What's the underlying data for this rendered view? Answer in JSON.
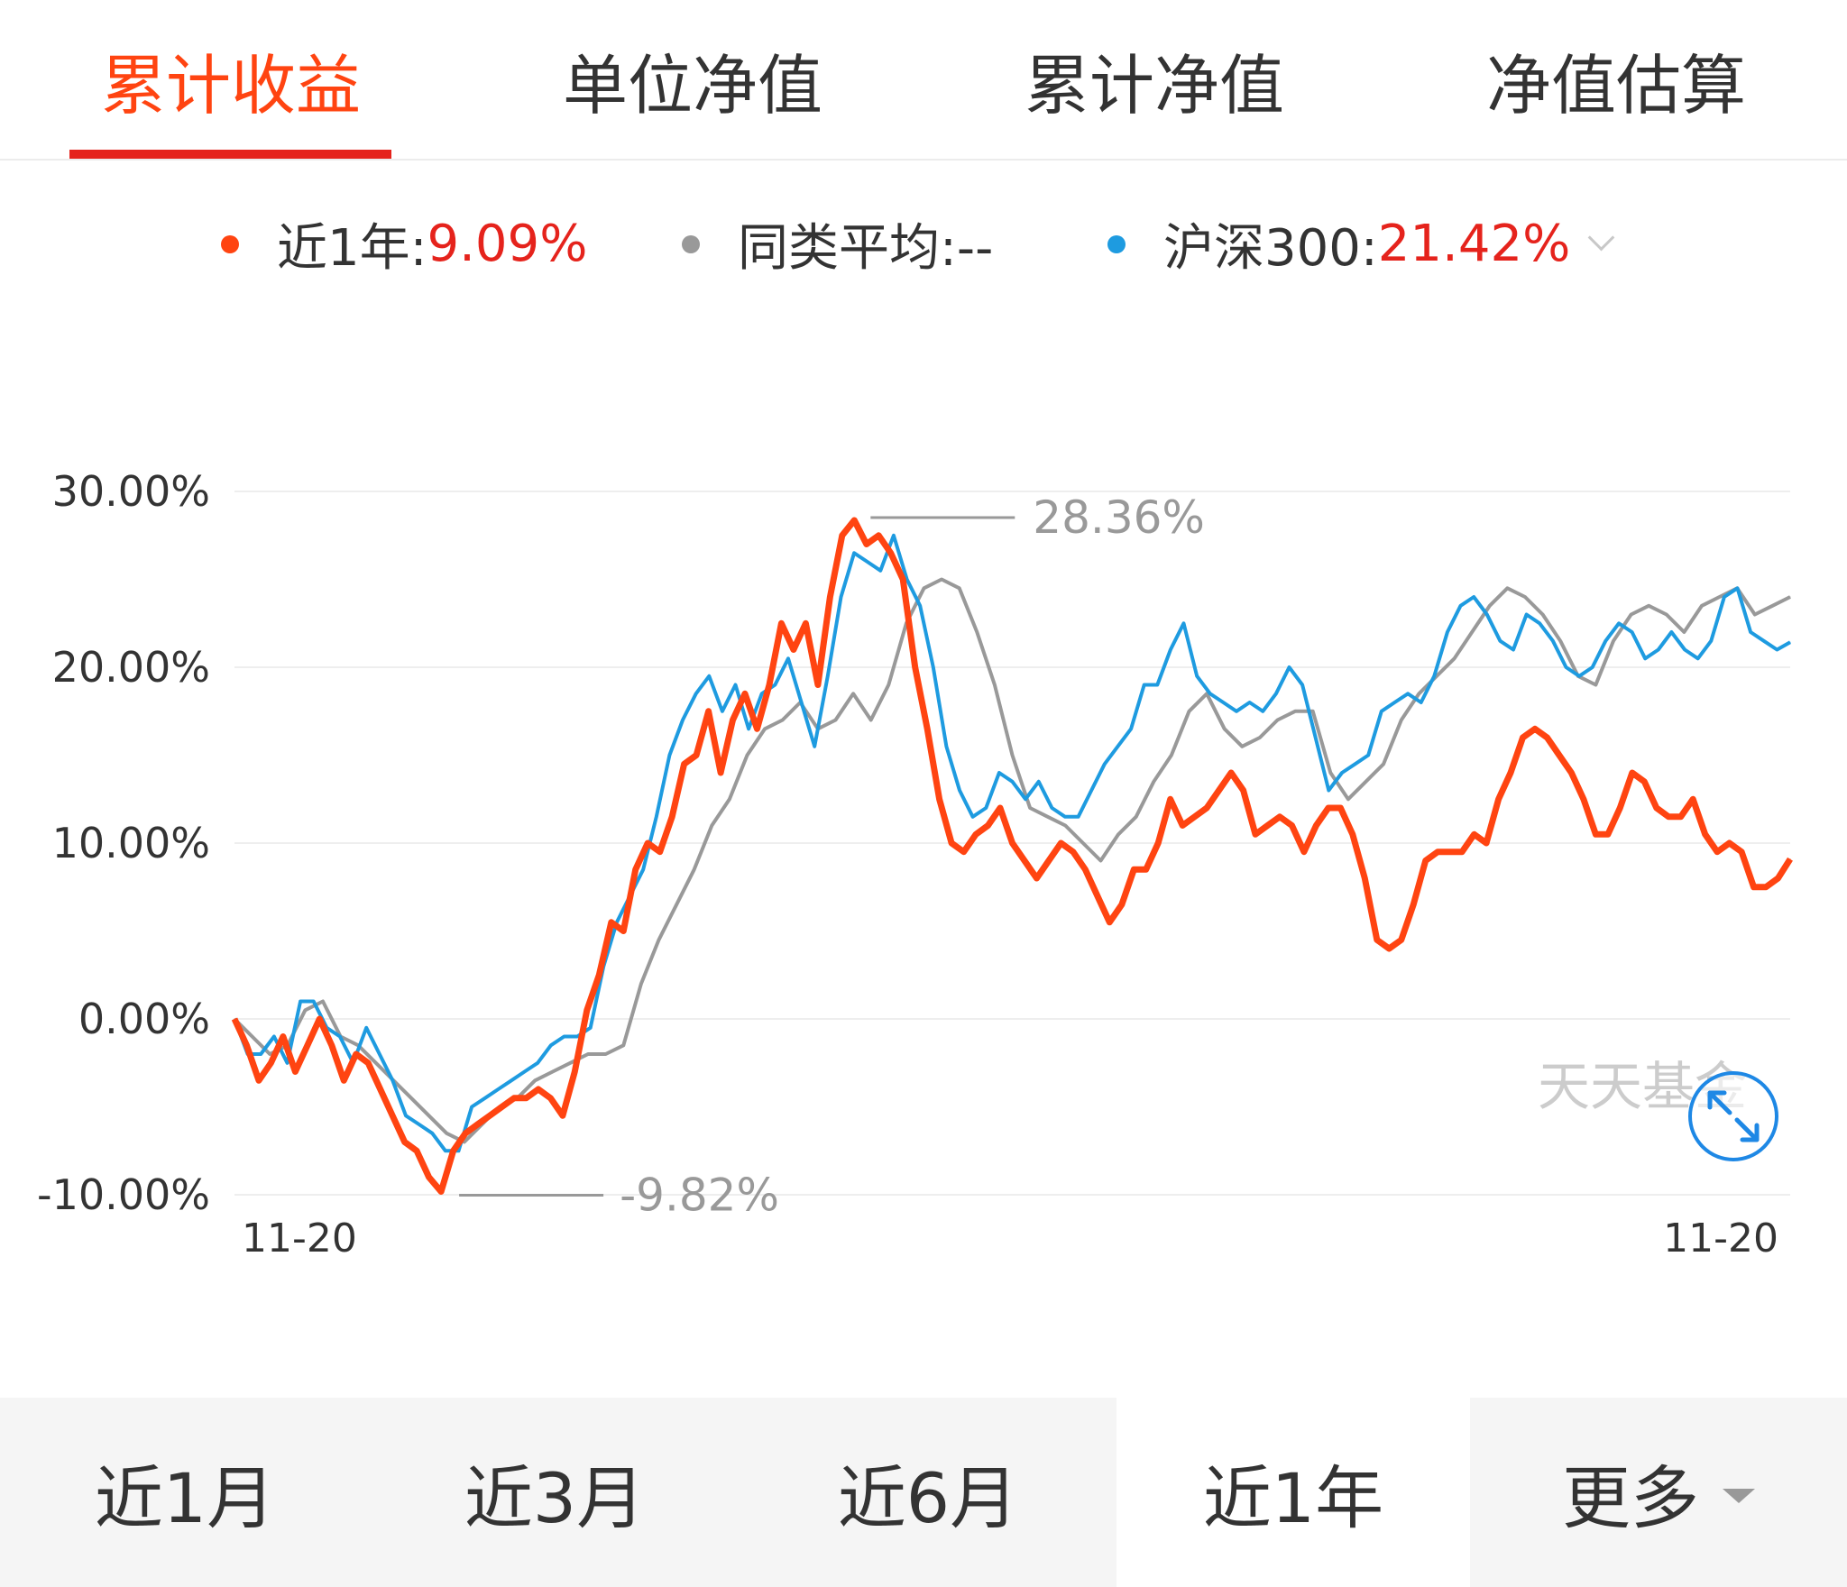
{
  "tabs": [
    {
      "label": "累计收益",
      "active": true
    },
    {
      "label": "单位净值",
      "active": false
    },
    {
      "label": "累计净值",
      "active": false
    },
    {
      "label": "净值估算",
      "active": false
    }
  ],
  "legend": {
    "fund": {
      "label": "近1年:",
      "value": "9.09%",
      "color": "#ff4411"
    },
    "peer": {
      "label": "同类平均:--",
      "color": "#999999"
    },
    "index": {
      "label": "沪深300:",
      "value": "21.42%",
      "color": "#1e9be0"
    }
  },
  "chart_data": {
    "type": "line",
    "x_tick_labels": [
      "11-20",
      "11-20"
    ],
    "y_tick_labels": [
      "30.00%",
      "20.00%",
      "10.00%",
      "0.00%",
      "-10.00%"
    ],
    "ylim": [
      -10,
      30
    ],
    "grid": true,
    "annotations": {
      "max": "28.36%",
      "min": "-9.82%"
    },
    "watermark": "天天基金",
    "expand_icon": "expand-arrows-icon",
    "series": [
      {
        "name": "近1年",
        "color": "#ff4411",
        "values": [
          0.0,
          -1.5,
          -3.5,
          -2.5,
          -1.0,
          -3.0,
          -1.5,
          0.0,
          -1.5,
          -3.5,
          -2.0,
          -2.5,
          -4.0,
          -5.5,
          -7.0,
          -7.5,
          -9.0,
          -9.82,
          -7.5,
          -6.5,
          -6.0,
          -5.5,
          -5.0,
          -4.5,
          -4.5,
          -4.0,
          -4.5,
          -5.5,
          -3.0,
          0.5,
          2.5,
          5.5,
          5.0,
          8.5,
          10.0,
          9.5,
          11.5,
          14.5,
          15.0,
          17.5,
          14.0,
          17.0,
          18.5,
          16.5,
          19.0,
          22.5,
          21.0,
          22.5,
          19.0,
          24.0,
          27.5,
          28.36,
          27.0,
          27.5,
          26.5,
          25.0,
          20.0,
          16.5,
          12.5,
          10.0,
          9.5,
          10.5,
          11.0,
          12.0,
          10.0,
          9.0,
          8.0,
          9.0,
          10.0,
          9.5,
          8.5,
          7.0,
          5.5,
          6.5,
          8.5,
          8.5,
          10.0,
          12.5,
          11.0,
          11.5,
          12.0,
          13.0,
          14.0,
          13.0,
          10.5,
          11.0,
          11.5,
          11.0,
          9.5,
          11.0,
          12.0,
          12.0,
          10.5,
          8.0,
          4.5,
          4.0,
          4.5,
          6.5,
          9.0,
          9.5,
          9.5,
          9.5,
          10.5,
          10.0,
          12.5,
          14.0,
          16.0,
          16.5,
          16.0,
          15.0,
          14.0,
          12.5,
          10.5,
          10.5,
          12.0,
          14.0,
          13.5,
          12.0,
          11.5,
          11.5,
          12.5,
          10.5,
          9.5,
          10.0,
          9.5,
          7.5,
          7.5,
          8.0,
          9.09
        ]
      },
      {
        "name": "沪深300",
        "color": "#1e9be0",
        "values": [
          0.0,
          -2.0,
          -2.0,
          -1.0,
          -2.5,
          1.0,
          1.0,
          -0.5,
          -1.0,
          -2.5,
          -0.5,
          -2.0,
          -3.5,
          -5.5,
          -6.0,
          -6.5,
          -7.5,
          -7.5,
          -5.0,
          -4.5,
          -4.0,
          -3.5,
          -3.0,
          -2.5,
          -1.5,
          -1.0,
          -1.0,
          -0.5,
          3.0,
          5.5,
          7.0,
          8.5,
          11.5,
          15.0,
          17.0,
          18.5,
          19.5,
          17.5,
          19.0,
          16.5,
          18.5,
          19.0,
          20.5,
          18.0,
          15.5,
          19.5,
          24.0,
          26.5,
          26.0,
          25.5,
          27.5,
          25.0,
          23.5,
          20.0,
          15.5,
          13.0,
          11.5,
          12.0,
          14.0,
          13.5,
          12.5,
          13.5,
          12.0,
          11.5,
          11.5,
          13.0,
          14.5,
          15.5,
          16.5,
          19.0,
          19.0,
          21.0,
          22.5,
          19.5,
          18.5,
          18.0,
          17.5,
          18.0,
          17.5,
          18.5,
          20.0,
          19.0,
          16.0,
          13.0,
          14.0,
          14.5,
          15.0,
          17.5,
          18.0,
          18.5,
          18.0,
          19.5,
          22.0,
          23.5,
          24.0,
          23.0,
          21.5,
          21.0,
          23.0,
          22.5,
          21.5,
          20.0,
          19.5,
          20.0,
          21.5,
          22.5,
          22.0,
          20.5,
          21.0,
          22.0,
          21.0,
          20.5,
          21.5,
          24.0,
          24.5,
          22.0,
          21.5,
          21.0,
          21.42
        ]
      },
      {
        "name": "同类平均",
        "color": "#999999",
        "values": [
          0.0,
          -1.0,
          -2.0,
          -1.5,
          0.5,
          1.0,
          -1.0,
          -1.5,
          -2.5,
          -3.5,
          -4.5,
          -5.5,
          -6.5,
          -7.0,
          -6.0,
          -5.0,
          -4.5,
          -3.5,
          -3.0,
          -2.5,
          -2.0,
          -2.0,
          -1.5,
          2.0,
          4.5,
          6.5,
          8.5,
          11.0,
          12.5,
          15.0,
          16.5,
          17.0,
          18.0,
          16.5,
          17.0,
          18.5,
          17.0,
          19.0,
          22.5,
          24.5,
          25.0,
          24.5,
          22.0,
          19.0,
          15.0,
          12.0,
          11.5,
          11.0,
          10.0,
          9.0,
          10.5,
          11.5,
          13.5,
          15.0,
          17.5,
          18.5,
          16.5,
          15.5,
          16.0,
          17.0,
          17.5,
          17.5,
          14.0,
          12.5,
          13.5,
          14.5,
          17.0,
          18.5,
          19.5,
          20.5,
          22.0,
          23.5,
          24.5,
          24.0,
          23.0,
          21.5,
          19.5,
          19.0,
          21.5,
          23.0,
          23.5,
          23.0,
          22.0,
          23.5,
          24.0,
          24.5,
          23.0,
          23.5,
          24.0
        ]
      }
    ]
  },
  "periods": [
    {
      "label": "近1月",
      "active": false
    },
    {
      "label": "近3月",
      "active": false
    },
    {
      "label": "近6月",
      "active": false
    },
    {
      "label": "近1年",
      "active": true
    },
    {
      "label": "更多",
      "active": false,
      "dropdown": true
    }
  ]
}
